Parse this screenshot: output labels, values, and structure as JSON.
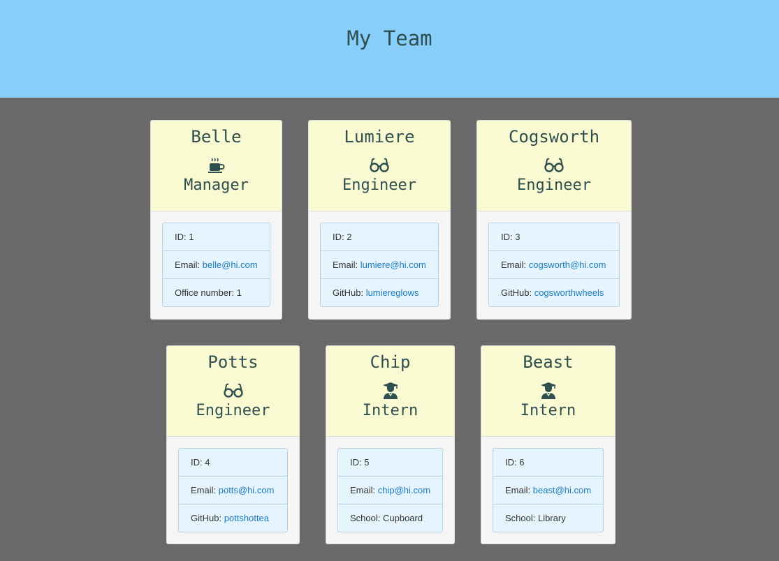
{
  "header": {
    "title": "My Team"
  },
  "cards": [
    {
      "name": "Belle",
      "icon": "coffee-mug-icon",
      "role": "Manager",
      "id_label": "ID: 1",
      "email_prefix": "Email: ",
      "email": "belle@hi.com",
      "extra_prefix": "Office number: ",
      "extra_value": "1"
    },
    {
      "name": "Lumiere",
      "icon": "glasses-icon",
      "role": "Engineer",
      "id_label": "ID: 2",
      "email_prefix": "Email: ",
      "email": "lumiere@hi.com",
      "extra_prefix": "GitHub: ",
      "extra_value": "lumiereglows"
    },
    {
      "name": "Cogsworth",
      "icon": "glasses-icon",
      "role": "Engineer",
      "id_label": "ID: 3",
      "email_prefix": "Email: ",
      "email": "cogsworth@hi.com",
      "extra_prefix": "GitHub: ",
      "extra_value": "cogsworthwheels"
    },
    {
      "name": "Potts",
      "icon": "glasses-icon",
      "role": "Engineer",
      "id_label": "ID: 4",
      "email_prefix": "Email: ",
      "email": "potts@hi.com",
      "extra_prefix": "GitHub: ",
      "extra_value": "pottshottea"
    },
    {
      "name": "Chip",
      "icon": "graduate-icon",
      "role": "Intern",
      "id_label": "ID: 5",
      "email_prefix": "Email: ",
      "email": "chip@hi.com",
      "extra_prefix": "School: ",
      "extra_value": "Cupboard"
    },
    {
      "name": "Beast",
      "icon": "graduate-icon",
      "role": "Intern",
      "id_label": "ID: 6",
      "email_prefix": "Email: ",
      "email": "beast@hi.com",
      "extra_prefix": "School: ",
      "extra_value": "Library"
    }
  ],
  "colors": {
    "header_bg": "#87cefa",
    "page_bg": "#696969",
    "card_head_bg": "#fafad2",
    "text_dark": "#2f4f4f",
    "link": "#1a7bc0"
  }
}
